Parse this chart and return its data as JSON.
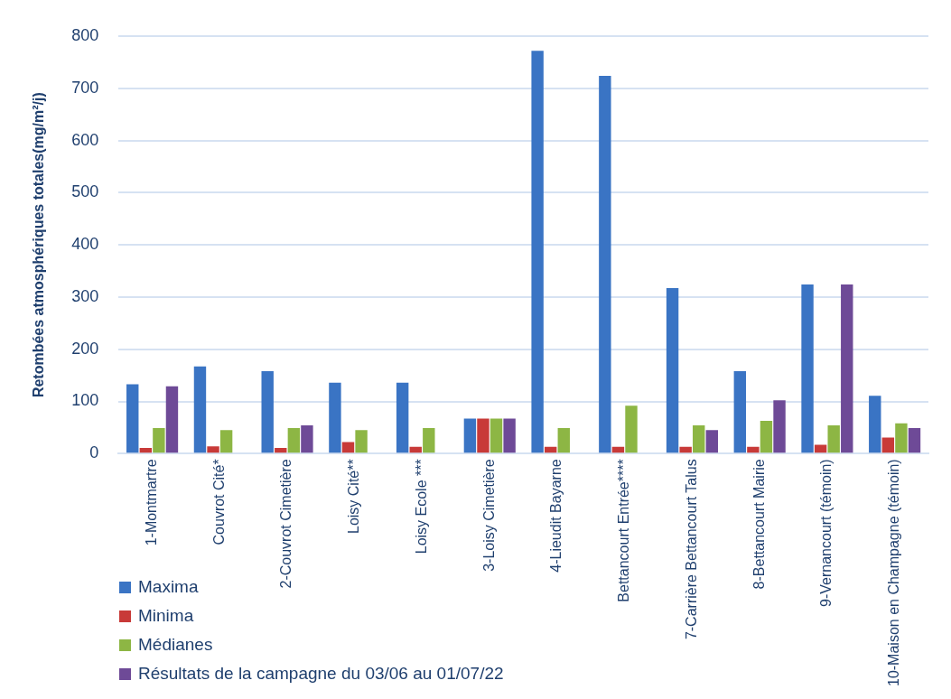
{
  "chart_data": {
    "type": "bar",
    "ylabel": "Retombées atmosphériques totales(mg/m²/j)",
    "categories": [
      "1-Montmartre",
      "Couvrot Cité*",
      "2-Couvrot Cimetière",
      "Loisy Cité**",
      "Loisy Ecole ***",
      "3-Loisy Cimetière",
      "4-Lieudit Bayarne",
      "Bettancourt Entrée****",
      "7-Carrière Bettancourt Talus",
      "8-Bettancourt Mairie",
      "9-Vernancourt (témoin)",
      "10-Maison en Champagne (témoin)"
    ],
    "series": [
      {
        "name": "Maxima",
        "color": "#3a74c4",
        "values": [
          133,
          167,
          158,
          136,
          136,
          67,
          772,
          724,
          317,
          158,
          324,
          111
        ]
      },
      {
        "name": "Minima",
        "color": "#c83a38",
        "values": [
          11,
          14,
          11,
          22,
          13,
          67,
          13,
          13,
          13,
          13,
          17,
          31
        ]
      },
      {
        "name": "Médianes",
        "color": "#8db644",
        "values": [
          49,
          45,
          49,
          45,
          49,
          67,
          49,
          92,
          54,
          63,
          54,
          58
        ]
      },
      {
        "name": "Résultats de la campagne du 03/06 au 01/07/22",
        "color": "#6e4a97",
        "values": [
          129,
          null,
          54,
          null,
          null,
          67,
          null,
          null,
          45,
          102,
          324,
          49
        ]
      }
    ],
    "ylim": [
      0,
      800
    ],
    "yticks": [
      0,
      100,
      200,
      300,
      400,
      500,
      600,
      700,
      800
    ],
    "grid": "y",
    "legend": "bottom left"
  }
}
